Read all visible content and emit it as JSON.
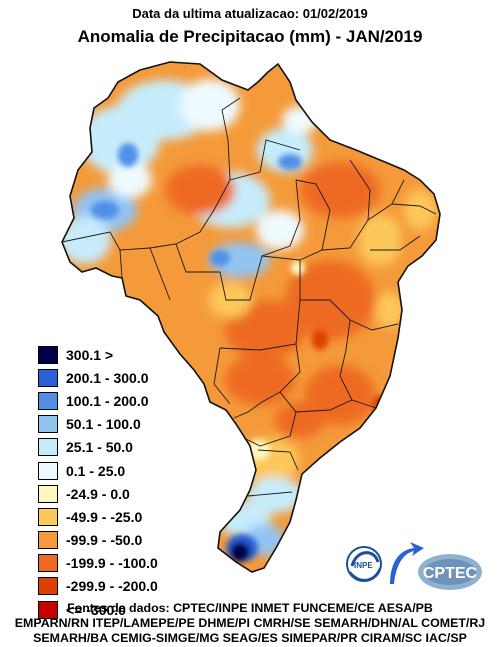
{
  "header": {
    "subtitle": "Data da ultima atualizacao: 01/02/2019",
    "title": "Anomalia de Precipitacao (mm) - JAN/2019"
  },
  "legend": [
    {
      "label": "300.1 >",
      "color": "#00004a"
    },
    {
      "label": "200.1 - 300.0",
      "color": "#2b5fd8"
    },
    {
      "label": "100.1 - 200.0",
      "color": "#4f8fe6"
    },
    {
      "label": "50.1 - 100.0",
      "color": "#92c4f2"
    },
    {
      "label": "25.1 - 50.0",
      "color": "#c6ecfb"
    },
    {
      "label": "0.1 - 25.0",
      "color": "#effaff"
    },
    {
      "label": "-24.9 - 0.0",
      "color": "#fff7c0"
    },
    {
      "label": "-49.9 - -25.0",
      "color": "#fdc85a"
    },
    {
      "label": "-99.9 - -50.0",
      "color": "#f49a3a"
    },
    {
      "label": "-199.9 - -100.0",
      "color": "#ee6a22"
    },
    {
      "label": "-299.9 - -200.0",
      "color": "#dd3f00"
    },
    {
      "label": "<= -300.0",
      "color": "#c40000"
    }
  ],
  "logos": {
    "inpe": "INPE",
    "cptec": "CPTEC"
  },
  "sources": [
    "Fontes de dados: CPTEC/INPE INMET FUNCEME/CE AESA/PB",
    "EMPARN/RN ITEP/LAMEPE/PE DHME/PI CMRH/SE SEMARH/DHN/AL COMET/RJ",
    "SEMARH/BA CEMIG-SIMGE/MG SEAG/ES SIMEPAR/PR CIRAM/SC IAC/SP"
  ],
  "colors": {
    "base": "#f49a3a",
    "border": "#1a1a1a"
  }
}
